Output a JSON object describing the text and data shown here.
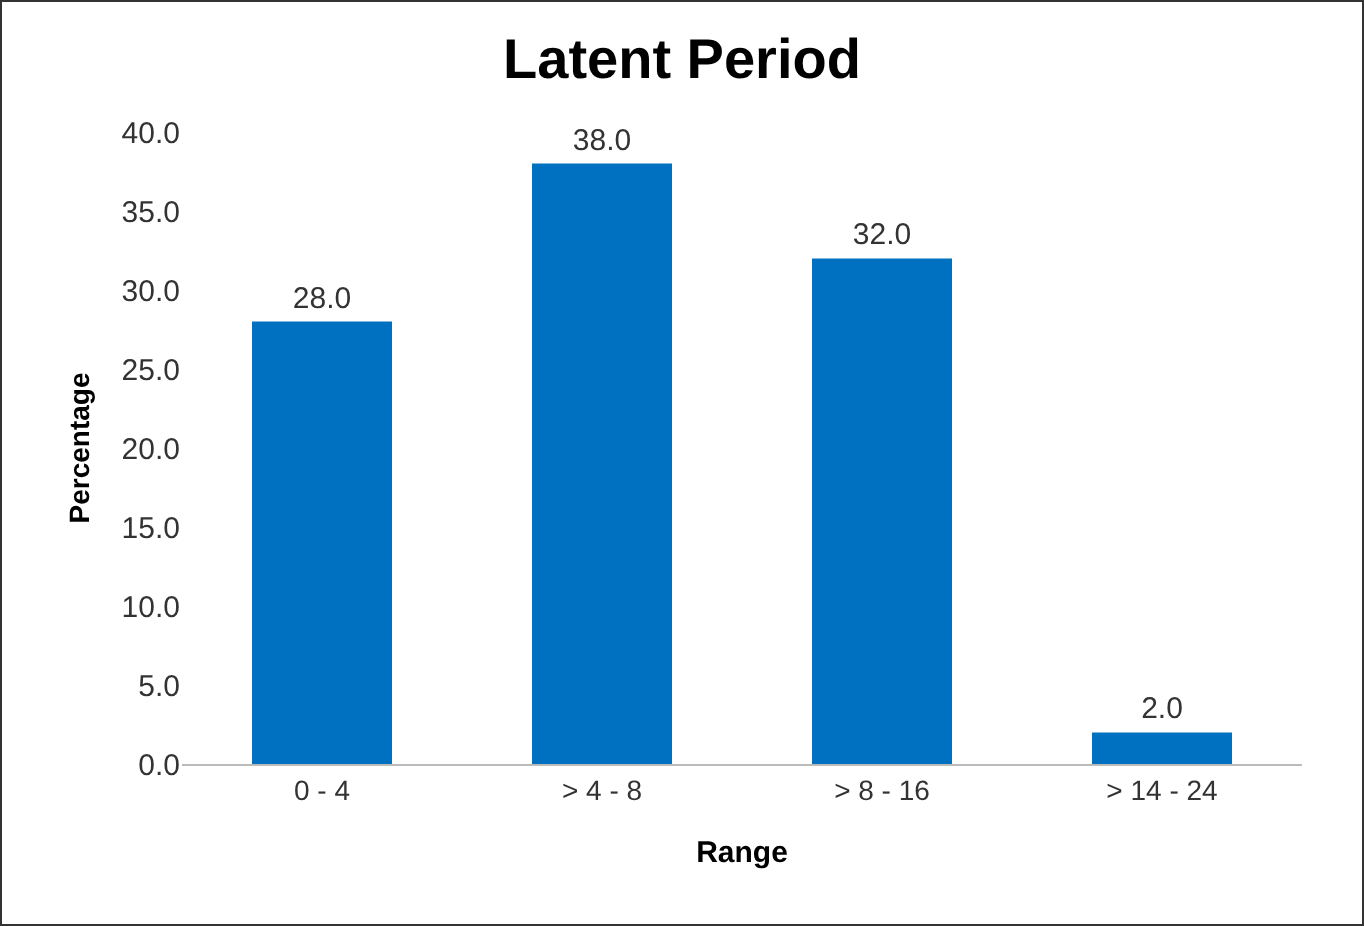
{
  "chart_data": {
    "type": "bar",
    "title": "Latent Period",
    "xlabel": "Range",
    "ylabel": "Percentage",
    "categories": [
      "0 - 4",
      "> 4 - 8",
      "> 8 - 16",
      "> 14 - 24"
    ],
    "values": [
      28,
      38,
      32,
      2
    ],
    "color": "#0070c0",
    "value_labels": [
      "28.0",
      "38.0",
      "32.0",
      "2.0"
    ],
    "ylim": [
      0,
      40
    ],
    "yticks": [
      {
        "value": 0,
        "label": "0.0"
      },
      {
        "value": 5,
        "label": "5.0"
      },
      {
        "value": 10,
        "label": "10.0"
      },
      {
        "value": 15,
        "label": "15.0"
      },
      {
        "value": 20,
        "label": "20.0"
      },
      {
        "value": 25,
        "label": "25.0"
      },
      {
        "value": 30,
        "label": "30.0"
      },
      {
        "value": 35,
        "label": "35.0"
      },
      {
        "value": 40,
        "label": "40.0"
      }
    ]
  }
}
